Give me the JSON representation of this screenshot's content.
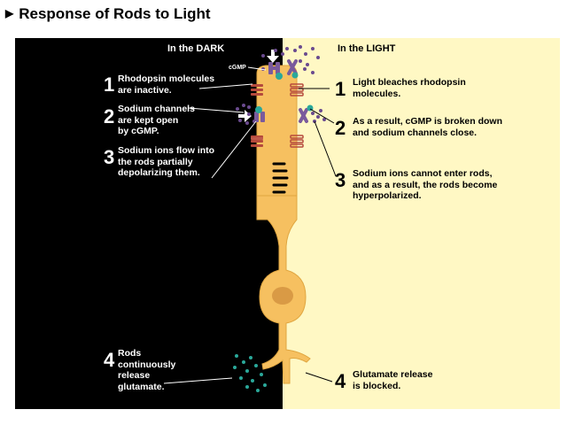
{
  "title": "Response of Rods to Light",
  "title_arrow_icon": "triangle-right-icon",
  "colors": {
    "dark_bg": "#000000",
    "light_bg": "#fff8c4",
    "rod": "#f6c060",
    "rod_outline": "#e0a640",
    "nucleus": "#d99a45",
    "channel": "#b54a3c",
    "rhodopsin": "#7a5a9c",
    "cgmp": "#2aa89a",
    "ion": "#6a4a8e",
    "glutamate": "#2aa89a"
  },
  "dark": {
    "heading": "In the DARK",
    "cgmp_label": "cGMP",
    "steps": [
      {
        "num": "1",
        "text": "Rhodopsin molecules\nare inactive."
      },
      {
        "num": "2",
        "text": "Sodium channels\nare kept open\nby cGMP."
      },
      {
        "num": "3",
        "text": "Sodium ions flow into\nthe rods partially\ndepolarizing them."
      },
      {
        "num": "4",
        "text": "Rods\ncontinuously\nrelease\nglutamate."
      }
    ]
  },
  "light": {
    "heading": "In the LIGHT",
    "steps": [
      {
        "num": "1",
        "text": "Light bleaches rhodopsin\nmolecules."
      },
      {
        "num": "2",
        "text": "As a result, cGMP is broken down\nand sodium channels close."
      },
      {
        "num": "3",
        "text": "Sodium ions cannot enter rods,\nand as a result, the rods become\nhyperpolarized."
      },
      {
        "num": "4",
        "text": "Glutamate release\nis blocked."
      }
    ]
  }
}
